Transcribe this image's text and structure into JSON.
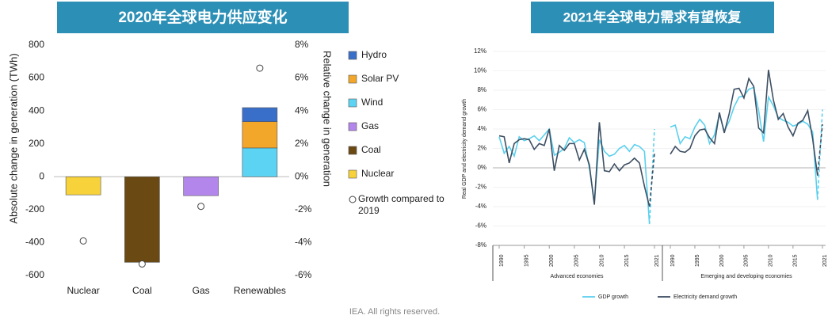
{
  "chart_data": [
    {
      "type": "bar",
      "title": "2020年全球电力供应变化",
      "ylabel": "Absolute change in generation (TWh)",
      "y2label": "Relative change in generation",
      "categories": [
        "Nuclear",
        "Coal",
        "Gas",
        "Renewables"
      ],
      "ylim": [
        -600,
        800
      ],
      "yticks": [
        -600,
        -400,
        -200,
        0,
        200,
        400,
        600,
        800
      ],
      "y2lim": [
        -6,
        8
      ],
      "y2ticks": [
        {
          "value": -6,
          "label": "-6%"
        },
        {
          "value": -4,
          "label": "-4%"
        },
        {
          "value": -2,
          "label": "-2%"
        },
        {
          "value": 0,
          "label": "0%"
        },
        {
          "value": 2,
          "label": "2%"
        },
        {
          "value": 4,
          "label": "4%"
        },
        {
          "value": 6,
          "label": "6%"
        },
        {
          "value": 8,
          "label": "8%"
        }
      ],
      "stacked": true,
      "series": [
        {
          "name": "Hydro",
          "color": "#3a6fc9",
          "values": [
            null,
            null,
            null,
            85
          ]
        },
        {
          "name": "Solar PV",
          "color": "#f2a62a",
          "values": [
            null,
            null,
            null,
            160
          ]
        },
        {
          "name": "Wind",
          "color": "#5dd3f3",
          "values": [
            null,
            null,
            null,
            175
          ]
        },
        {
          "name": "Gas",
          "color": "#b386ec",
          "values": [
            null,
            null,
            -115,
            null
          ]
        },
        {
          "name": "Coal",
          "color": "#6b4913",
          "values": [
            null,
            -520,
            null,
            null
          ]
        },
        {
          "name": "Nuclear",
          "color": "#f8d23a",
          "values": [
            -110,
            null,
            null,
            null
          ]
        },
        {
          "name": "Growth compared to 2019",
          "color": "#ffffff",
          "type": "scatter",
          "axis": "y2",
          "values": [
            -3.9,
            -5.3,
            -1.8,
            6.6
          ]
        }
      ]
    },
    {
      "type": "line",
      "title": "2021年全球电力需求有望恢复",
      "ylabel": "Real GDP and electricity demand growth",
      "ylim": [
        -8,
        12
      ],
      "yticks": [
        {
          "value": -8,
          "label": "-8%"
        },
        {
          "value": -6,
          "label": "-6%"
        },
        {
          "value": -4,
          "label": "-4%"
        },
        {
          "value": -2,
          "label": "-2%"
        },
        {
          "value": 0,
          "label": "0%"
        },
        {
          "value": 2,
          "label": "2%"
        },
        {
          "value": 4,
          "label": "4%"
        },
        {
          "value": 6,
          "label": "6%"
        },
        {
          "value": 8,
          "label": "8%"
        },
        {
          "value": 10,
          "label": "10%"
        },
        {
          "value": 12,
          "label": "12%"
        }
      ],
      "grid": true,
      "dashed_last": true,
      "x": [
        1990,
        1991,
        1992,
        1993,
        1994,
        1995,
        1996,
        1997,
        1998,
        1999,
        2000,
        2001,
        2002,
        2003,
        2004,
        2005,
        2006,
        2007,
        2008,
        2009,
        2010,
        2011,
        2012,
        2013,
        2014,
        2015,
        2016,
        2017,
        2018,
        2019,
        2020,
        2021
      ],
      "xticks": [
        1990,
        1995,
        2000,
        2005,
        2010,
        2015,
        2021
      ],
      "panels": [
        "Advanced economies",
        "Emerging and developing economies"
      ],
      "series": [
        {
          "name": "GDP growth",
          "color": "#5bd0ee",
          "values": [
            [
              3.2,
              1.5,
              2.2,
              1.2,
              3.2,
              2.8,
              3.0,
              3.3,
              2.8,
              3.4,
              4.0,
              1.3,
              1.6,
              2.0,
              3.1,
              2.6,
              2.9,
              2.6,
              0.0,
              -3.5,
              2.9,
              1.7,
              1.2,
              1.4,
              2.0,
              2.3,
              1.7,
              2.4,
              2.2,
              1.7,
              -5.8,
              4.0
            ],
            [
              4.2,
              4.4,
              2.5,
              3.2,
              3.0,
              4.2,
              5.0,
              4.4,
              2.5,
              3.4,
              5.5,
              3.8,
              4.8,
              6.3,
              7.3,
              7.4,
              8.1,
              8.3,
              5.9,
              2.7,
              7.3,
              6.4,
              5.2,
              4.9,
              4.7,
              4.3,
              4.5,
              4.8,
              4.5,
              3.7,
              -3.3,
              6.0
            ]
          ]
        },
        {
          "name": "Electricity demand growth",
          "color": "#3d4f63",
          "values": [
            [
              3.3,
              3.2,
              0.5,
              2.5,
              2.9,
              3.0,
              2.9,
              1.9,
              2.5,
              2.3,
              4.0,
              -0.3,
              2.3,
              1.8,
              2.5,
              2.5,
              0.8,
              1.9,
              0.3,
              -3.8,
              4.7,
              -0.3,
              -0.4,
              0.4,
              -0.3,
              0.3,
              0.5,
              1.0,
              0.5,
              -1.9,
              -4.0,
              1.5
            ],
            [
              1.4,
              2.2,
              1.7,
              1.6,
              2.0,
              3.3,
              3.9,
              4.0,
              3.1,
              2.5,
              5.7,
              3.6,
              5.6,
              8.1,
              8.2,
              7.2,
              9.2,
              8.4,
              4.1,
              3.6,
              10.1,
              7.0,
              5.0,
              5.6,
              4.2,
              3.3,
              4.6,
              4.9,
              5.9,
              3.0,
              -0.8,
              4.5
            ]
          ]
        }
      ]
    }
  ],
  "footer": "IEA. All rights reserved."
}
